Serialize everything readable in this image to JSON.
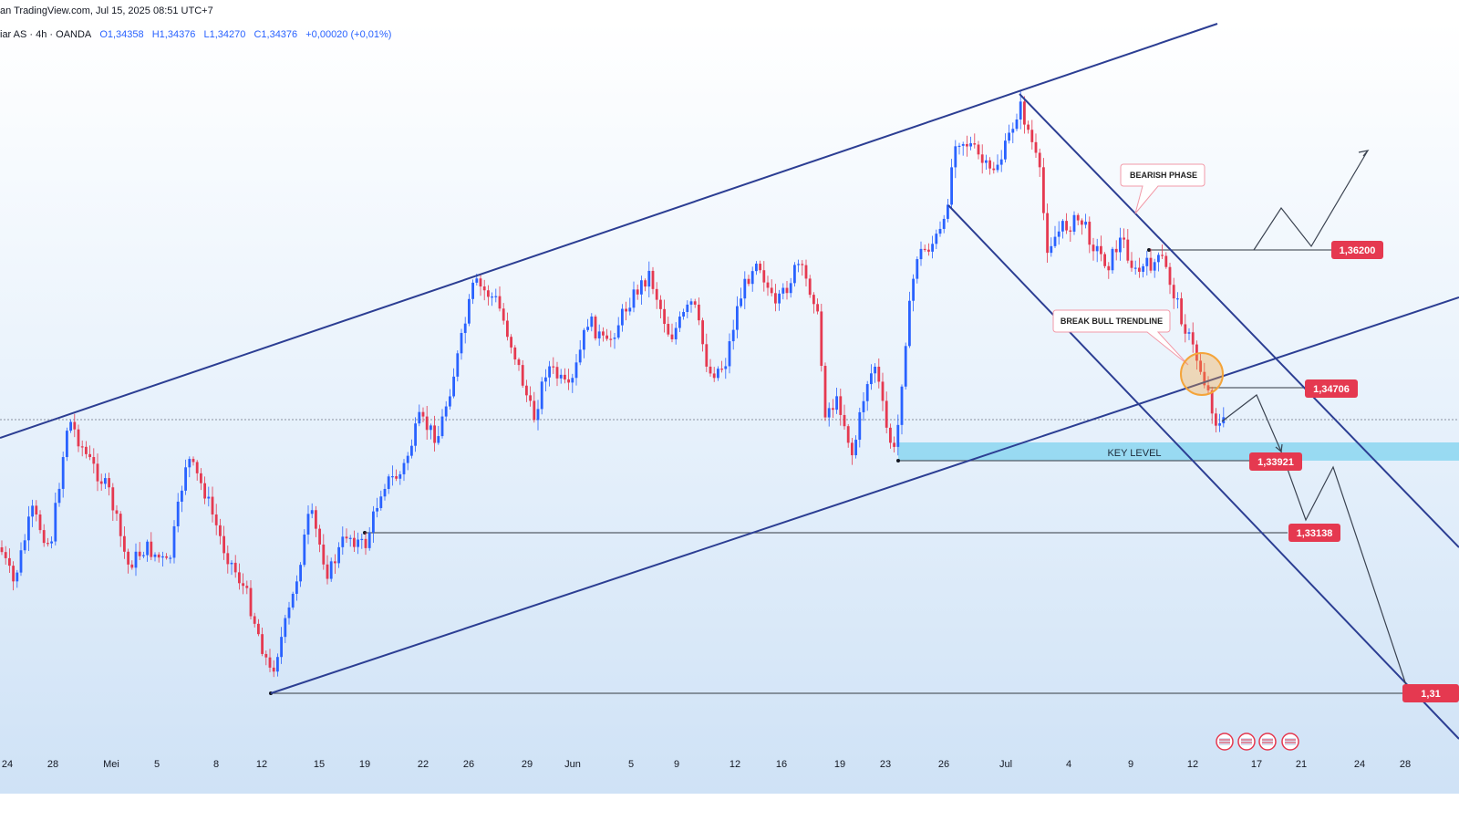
{
  "header": {
    "source_text": "an TradingView.com, Jul 15, 2025 08:51 UTC+7"
  },
  "legend": {
    "symbol": "iar AS · 4h · OANDA",
    "open": "O1,34358",
    "high": "H1,34376",
    "low": "L1,34270",
    "close": "C1,34376",
    "change": "+0,00020 (+0,01%)"
  },
  "colors": {
    "up": "#2962ff",
    "down": "#e53950",
    "channel": "#2c3e93",
    "price_tag": "#e53950",
    "key_zone": "#7fd3ef",
    "highlight": "#f4a43a"
  },
  "chart_data": {
    "type": "candlestick",
    "x_tick_labels": [
      "24",
      "28",
      "Mei",
      "5",
      "8",
      "12",
      "15",
      "19",
      "22",
      "26",
      "29",
      "Jun",
      "5",
      "9",
      "12",
      "16",
      "19",
      "23",
      "26",
      "Jul",
      "4",
      "9",
      "12",
      "17",
      "21",
      "24",
      "28"
    ],
    "price_labels": [
      "1,36200",
      "1,34706",
      "1,33921",
      "1,33138",
      "1,31"
    ],
    "annotations": [
      "BEARISH PHASE",
      "BREAK BULL TRENDLINE",
      "KEY LEVEL"
    ],
    "last_price": 1.34376,
    "ohlc_last": {
      "open": 1.34358,
      "high": 1.34376,
      "low": 1.3427,
      "close": 1.34376
    }
  }
}
